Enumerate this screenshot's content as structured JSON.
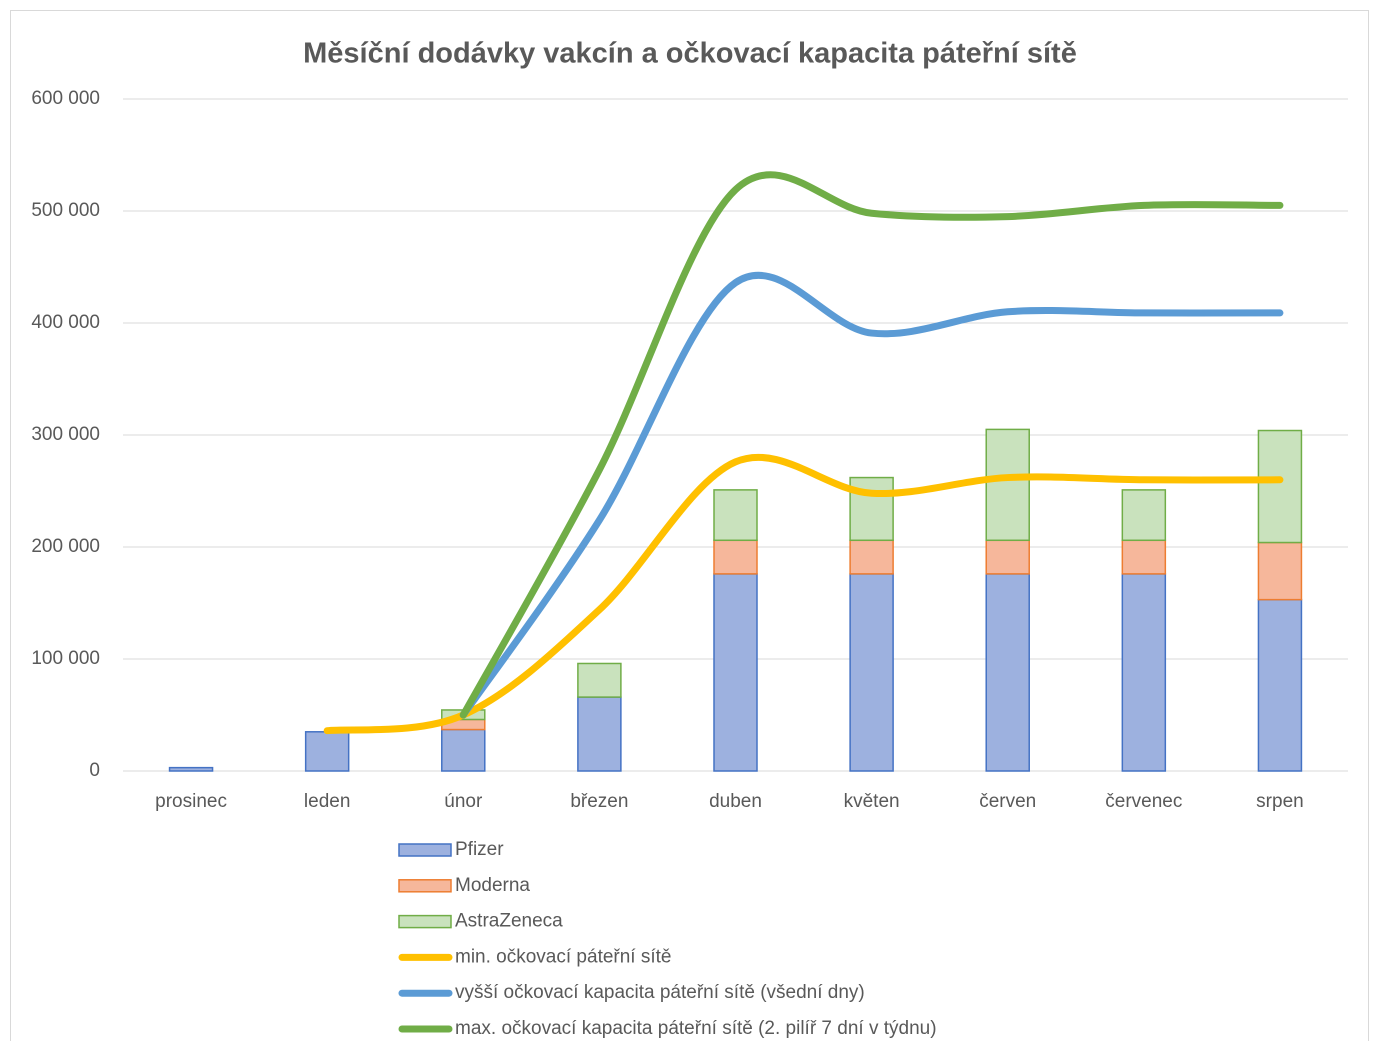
{
  "chart_data": {
    "type": "bar",
    "stacked": true,
    "title": "Měsíční dodávky vakcín a očkovací kapacita páteřní sítě",
    "categories": [
      "prosinec",
      "leden",
      "únor",
      "březen",
      "duben",
      "květen",
      "červen",
      "červenec",
      "srpen"
    ],
    "ylim": [
      0,
      600000
    ],
    "yticks": [
      {
        "value": 0,
        "label": "0"
      },
      {
        "value": 100000,
        "label": "100 000"
      },
      {
        "value": 200000,
        "label": "200 000"
      },
      {
        "value": 300000,
        "label": "300 000"
      },
      {
        "value": 400000,
        "label": "400 000"
      },
      {
        "value": 500000,
        "label": "500 000"
      },
      {
        "value": 600000,
        "label": "600 000"
      }
    ],
    "grid": true,
    "legend": "bottom",
    "series": [
      {
        "name": "Pfizer",
        "type": "bar",
        "color": "#9db1df",
        "edge_color": "#4472c4",
        "values": [
          3000,
          35000,
          37000,
          66000,
          176000,
          176000,
          176000,
          176000,
          153000
        ]
      },
      {
        "name": "Moderna",
        "type": "bar",
        "color": "#f6b79b",
        "edge_color": "#ed7d31",
        "values": [
          0,
          0,
          9000,
          0,
          30000,
          30000,
          30000,
          30000,
          51000
        ]
      },
      {
        "name": "AstraZeneca",
        "type": "bar",
        "color": "#c9e2bd",
        "edge_color": "#70ad47",
        "values": [
          0,
          0,
          8500,
          30000,
          45000,
          56000,
          99000,
          45000,
          100000
        ]
      },
      {
        "name": "min. očkovací páteřní sítě",
        "type": "line",
        "color": "#ffc000",
        "values": [
          null,
          36000,
          50000,
          144000,
          276000,
          248000,
          262000,
          260000,
          260000
        ]
      },
      {
        "name": "vyšší očkovací kapacita páteřní sítě (všední dny)",
        "type": "line",
        "color": "#5b9bd5",
        "values": [
          null,
          null,
          50000,
          224000,
          436000,
          391000,
          410000,
          409000,
          409000
        ]
      },
      {
        "name": "max. očkovací kapacita páteřní sítě (2. pilíř 7 dní v týdnu)",
        "type": "line",
        "color": "#70ad47",
        "values": [
          null,
          null,
          50000,
          269000,
          519000,
          498000,
          495000,
          505000,
          505000
        ]
      }
    ]
  }
}
